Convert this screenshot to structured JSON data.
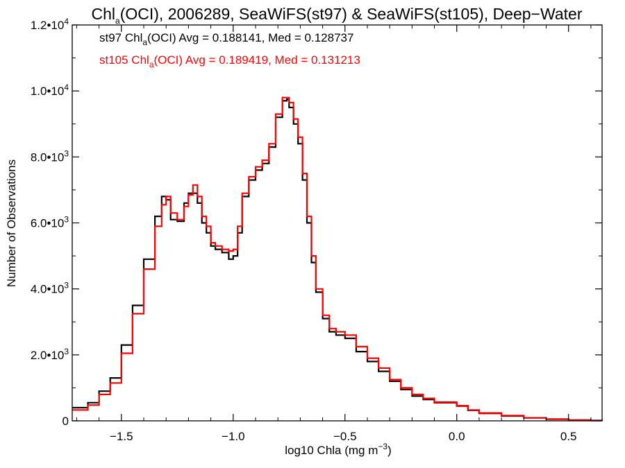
{
  "chart_data": {
    "type": "line",
    "title": {
      "pre": "Chl",
      "sub": "a",
      "post": "(OCI), 2006289, SeaWiFS(st97) & SeaWiFS(st105), Deep−Water"
    },
    "xlabel": {
      "pre": "log10 Chla (mg m",
      "sup": "−3",
      "post": ")"
    },
    "ylabel": "Number of Observations",
    "xlim": [
      -1.72,
      0.65
    ],
    "ylim": [
      0,
      12000
    ],
    "grid": false,
    "step": true,
    "x_ticks": [
      {
        "value": -1.5,
        "label": "−1.5"
      },
      {
        "value": -1.0,
        "label": "−1.0"
      },
      {
        "value": -0.5,
        "label": "−0.5"
      },
      {
        "value": 0.0,
        "label": "0.0"
      },
      {
        "value": 0.5,
        "label": "0.5"
      }
    ],
    "y_ticks": [
      {
        "value": 0,
        "mant": "0",
        "exp": ""
      },
      {
        "value": 2000,
        "mant": "2.0•10",
        "exp": "3"
      },
      {
        "value": 4000,
        "mant": "4.0•10",
        "exp": "3"
      },
      {
        "value": 6000,
        "mant": "6.0•10",
        "exp": "3"
      },
      {
        "value": 8000,
        "mant": "8.0•10",
        "exp": "3"
      },
      {
        "value": 10000,
        "mant": "1.0•10",
        "exp": "4"
      },
      {
        "value": 12000,
        "mant": "1.2•10",
        "exp": "4"
      }
    ],
    "legend_placement": "top-left",
    "legend": [
      {
        "color": "#000000",
        "pre": "st97 Chl",
        "sub": "a",
        "post": "(OCI) Avg = 0.188141, Med = 0.128737"
      },
      {
        "color": "#ff0000",
        "pre": "st105 Chl",
        "sub": "a",
        "post": "(OCI) Avg = 0.189419, Med = 0.131213"
      }
    ],
    "series": [
      {
        "key": "st97",
        "color": "#000000",
        "x": [
          -1.72,
          -1.65,
          -1.6,
          -1.55,
          -1.5,
          -1.45,
          -1.4,
          -1.35,
          -1.32,
          -1.3,
          -1.28,
          -1.25,
          -1.22,
          -1.2,
          -1.18,
          -1.16,
          -1.14,
          -1.12,
          -1.1,
          -1.08,
          -1.05,
          -1.02,
          -1.0,
          -0.98,
          -0.96,
          -0.93,
          -0.9,
          -0.87,
          -0.84,
          -0.81,
          -0.78,
          -0.76,
          -0.75,
          -0.73,
          -0.71,
          -0.69,
          -0.67,
          -0.65,
          -0.63,
          -0.6,
          -0.57,
          -0.54,
          -0.5,
          -0.45,
          -0.4,
          -0.35,
          -0.3,
          -0.25,
          -0.2,
          -0.15,
          -0.1,
          0.0,
          0.05,
          0.1,
          0.2,
          0.3,
          0.4,
          0.5,
          0.6,
          0.65
        ],
        "y": [
          400,
          550,
          900,
          1300,
          2300,
          3500,
          4900,
          6200,
          6800,
          6700,
          6100,
          6050,
          6600,
          6900,
          6900,
          6600,
          6000,
          5700,
          5300,
          5200,
          5100,
          4900,
          5000,
          5700,
          6800,
          7300,
          7600,
          7800,
          8300,
          9200,
          9700,
          9750,
          9500,
          9000,
          8400,
          7300,
          6000,
          4800,
          3900,
          3100,
          2700,
          2600,
          2500,
          2100,
          1800,
          1500,
          1200,
          950,
          750,
          650,
          550,
          450,
          320,
          230,
          150,
          90,
          50,
          25,
          10,
          5
        ]
      },
      {
        "key": "st105",
        "color": "#ff0000",
        "x": [
          -1.72,
          -1.65,
          -1.6,
          -1.55,
          -1.5,
          -1.45,
          -1.4,
          -1.35,
          -1.32,
          -1.3,
          -1.28,
          -1.25,
          -1.22,
          -1.2,
          -1.18,
          -1.16,
          -1.14,
          -1.12,
          -1.1,
          -1.08,
          -1.05,
          -1.02,
          -1.0,
          -0.98,
          -0.96,
          -0.93,
          -0.9,
          -0.87,
          -0.84,
          -0.81,
          -0.78,
          -0.76,
          -0.75,
          -0.73,
          -0.71,
          -0.69,
          -0.67,
          -0.65,
          -0.63,
          -0.6,
          -0.57,
          -0.54,
          -0.5,
          -0.45,
          -0.4,
          -0.35,
          -0.3,
          -0.25,
          -0.2,
          -0.15,
          -0.1,
          0.0,
          0.05,
          0.1,
          0.2,
          0.3,
          0.4,
          0.5,
          0.6,
          0.65
        ],
        "y": [
          330,
          480,
          800,
          1150,
          2050,
          3250,
          4600,
          5900,
          6550,
          6800,
          6300,
          6100,
          6500,
          6850,
          7150,
          6800,
          6200,
          5900,
          5400,
          5300,
          5200,
          5150,
          5200,
          5900,
          6900,
          7400,
          7700,
          7900,
          8400,
          9300,
          9800,
          9800,
          9650,
          9150,
          8600,
          7500,
          6200,
          5000,
          4000,
          3200,
          2800,
          2700,
          2600,
          2250,
          1900,
          1600,
          1250,
          1000,
          800,
          680,
          570,
          460,
          330,
          240,
          160,
          95,
          55,
          28,
          12,
          6
        ]
      }
    ]
  }
}
